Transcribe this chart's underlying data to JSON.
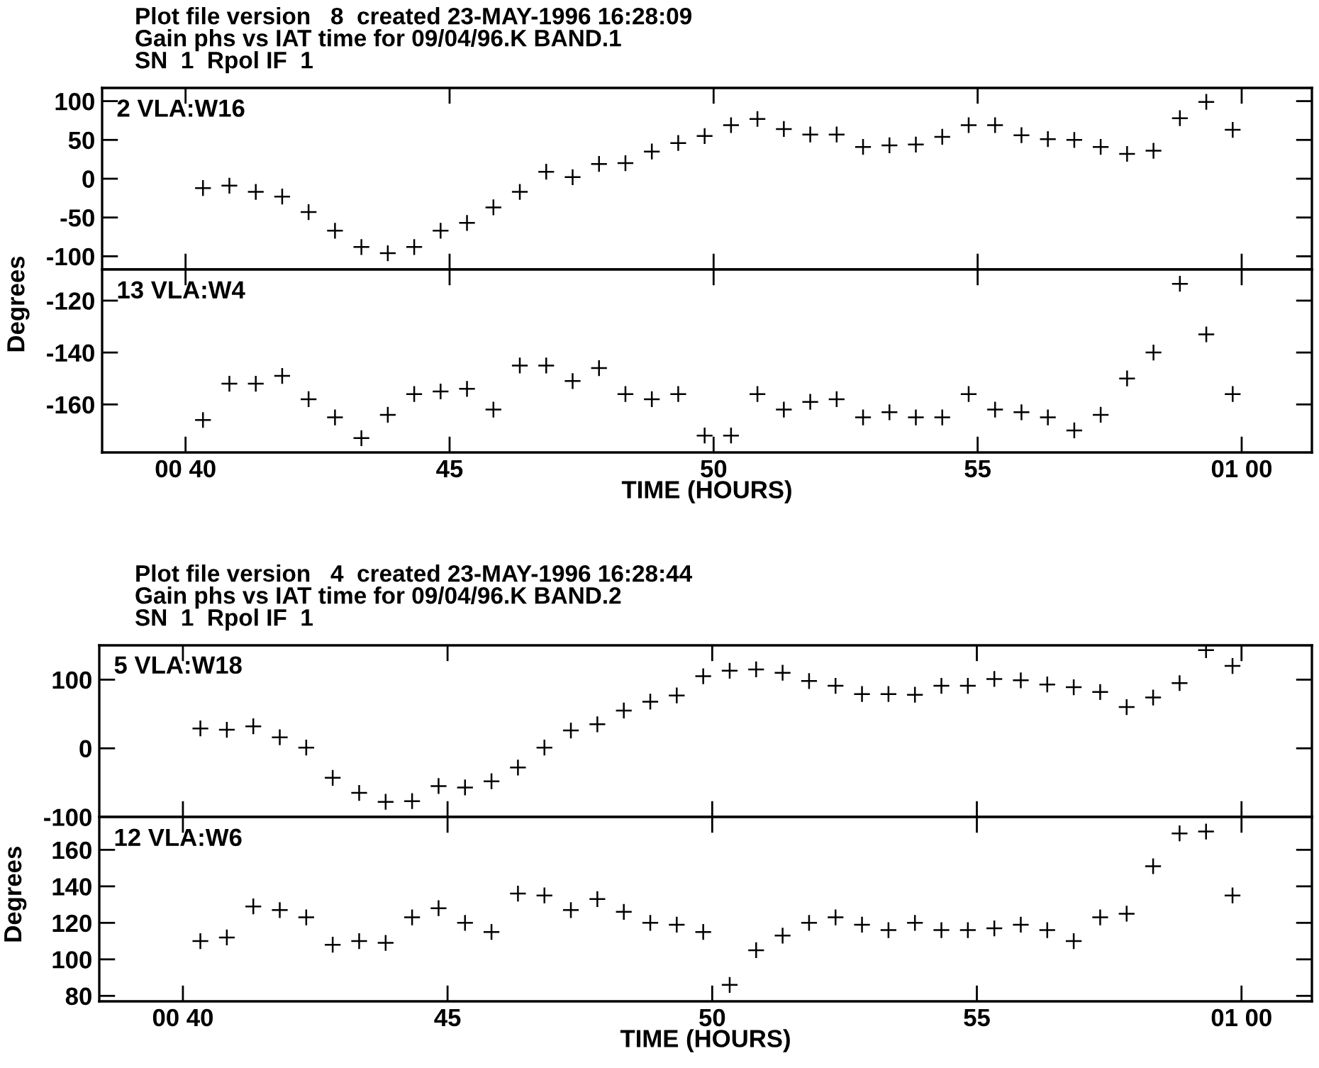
{
  "chart_data": [
    {
      "type": "scatter",
      "title": "Plot file version   8  created 23-MAY-1996 16:28:09",
      "subtitle": "Gain phs vs IAT time for 09/04/96.K BAND.1\nSN  1  Rpol IF  1",
      "annotations": [
        "2 VLA:W16"
      ],
      "marker": "cross",
      "tick_labels": "y",
      "x": [
        40.33,
        40.83,
        41.33,
        41.83,
        42.33,
        42.83,
        43.33,
        43.83,
        44.33,
        44.83,
        45.33,
        45.83,
        46.33,
        46.83,
        47.33,
        47.83,
        48.33,
        48.83,
        49.33,
        49.83,
        50.33,
        50.83,
        51.33,
        51.83,
        52.33,
        52.83,
        53.33,
        53.83,
        54.33,
        54.83,
        55.33,
        55.83,
        56.33,
        56.83,
        57.33,
        57.83,
        58.33,
        58.83,
        59.33,
        59.83
      ],
      "series": [
        {
          "color": "#000000",
          "values": [
            -12,
            -9,
            -17,
            -23,
            -43,
            -67,
            -88,
            -96,
            -88,
            -67,
            -57,
            -37,
            -17,
            9,
            2,
            19,
            20,
            35,
            46,
            55,
            69,
            77,
            64,
            57,
            57,
            41,
            43,
            44,
            54,
            69,
            69,
            56,
            51,
            50,
            41,
            32,
            36,
            78,
            99,
            63
          ]
        }
      ],
      "xlim": [
        38.42,
        61.33
      ],
      "xticks": [
        {
          "value": 40,
          "label": null
        },
        {
          "value": 45,
          "label": null
        },
        {
          "value": 50,
          "label": null
        },
        {
          "value": 55,
          "label": null
        },
        {
          "value": 60,
          "label": null
        }
      ],
      "ylim": [
        -117,
        117
      ],
      "yticks": [
        -100,
        -50,
        0,
        50,
        100
      ]
    },
    {
      "type": "scatter",
      "xlabel": "TIME (HOURS)",
      "ylabel": "Degrees",
      "annotations": [
        "13 VLA:W4"
      ],
      "marker": "cross",
      "x": [
        40.33,
        40.83,
        41.33,
        41.83,
        42.33,
        42.83,
        43.33,
        43.83,
        44.33,
        44.83,
        45.33,
        45.83,
        46.33,
        46.83,
        47.33,
        47.83,
        48.33,
        48.83,
        49.33,
        49.83,
        50.33,
        50.83,
        51.33,
        51.83,
        52.33,
        52.83,
        53.33,
        53.83,
        54.33,
        54.83,
        55.33,
        55.83,
        56.33,
        56.83,
        57.33,
        57.83,
        58.33,
        58.83,
        59.33,
        59.83
      ],
      "series": [
        {
          "color": "#000000",
          "values": [
            -166,
            -152,
            -152,
            -149,
            -158,
            -165,
            -173,
            -164,
            -156,
            -155,
            -154,
            -162,
            -145,
            -145,
            -151,
            -146,
            -156,
            -158,
            -156,
            -172,
            -172,
            -156,
            -162,
            -159,
            -158,
            -165,
            -163,
            -165,
            -165,
            -156,
            -162,
            -163,
            -165,
            -170,
            -164,
            -150,
            -140,
            -113.5,
            -133,
            -156
          ]
        }
      ],
      "xlim": [
        38.42,
        61.33
      ],
      "xticks": [
        {
          "value": 40,
          "label": "00 40"
        },
        45,
        50,
        55,
        {
          "value": 60,
          "label": "01 00"
        }
      ],
      "ylim": [
        -178.5,
        -108
      ],
      "yticks": [
        -160,
        -140,
        -120
      ]
    },
    {
      "type": "scatter",
      "title": "Plot file version   4  created 23-MAY-1996 16:28:44",
      "subtitle": "Gain phs vs IAT time for 09/04/96.K BAND.2\nSN  1  Rpol IF  1",
      "annotations": [
        "5 VLA:W18"
      ],
      "marker": "cross",
      "tick_labels": "y",
      "x": [
        40.33,
        40.83,
        41.33,
        41.83,
        42.33,
        42.83,
        43.33,
        43.83,
        44.33,
        44.83,
        45.33,
        45.83,
        46.33,
        46.83,
        47.33,
        47.83,
        48.33,
        48.83,
        49.33,
        49.83,
        50.33,
        50.83,
        51.33,
        51.83,
        52.33,
        52.83,
        53.33,
        53.83,
        54.33,
        54.83,
        55.33,
        55.83,
        56.33,
        56.83,
        57.33,
        57.83,
        58.33,
        58.83,
        59.33,
        59.83
      ],
      "series": [
        {
          "color": "#000000",
          "values": [
            29,
            27,
            32,
            16,
            1,
            -43,
            -65,
            -78,
            -77,
            -55,
            -57,
            -48,
            -28,
            1,
            26,
            35,
            55,
            68,
            77,
            105,
            113,
            115,
            110,
            98,
            91,
            79,
            79,
            78,
            91,
            91,
            101,
            99,
            93,
            89,
            82,
            60,
            74,
            95,
            143,
            120
          ]
        }
      ],
      "xlim": [
        38.42,
        61.33
      ],
      "xticks": [
        {
          "value": 40,
          "label": null
        },
        {
          "value": 45,
          "label": null
        },
        {
          "value": 50,
          "label": null
        },
        {
          "value": 55,
          "label": null
        },
        {
          "value": 60,
          "label": null
        }
      ],
      "ylim": [
        -100,
        150
      ],
      "yticks": [
        -100,
        0,
        100
      ]
    },
    {
      "type": "scatter",
      "xlabel": "TIME (HOURS)",
      "ylabel": "Degrees",
      "annotations": [
        "12 VLA:W6"
      ],
      "marker": "cross",
      "x": [
        40.33,
        40.83,
        41.33,
        41.83,
        42.33,
        42.83,
        43.33,
        43.83,
        44.33,
        44.83,
        45.33,
        45.83,
        46.33,
        46.83,
        47.33,
        47.83,
        48.33,
        48.83,
        49.33,
        49.83,
        50.33,
        50.83,
        51.33,
        51.83,
        52.33,
        52.83,
        53.33,
        53.83,
        54.33,
        54.83,
        55.33,
        55.83,
        56.33,
        56.83,
        57.33,
        57.83,
        58.33,
        58.83,
        59.33,
        59.83
      ],
      "series": [
        {
          "color": "#000000",
          "values": [
            110,
            112,
            129,
            127,
            123,
            108,
            110,
            109,
            123,
            128,
            120,
            115,
            136,
            135,
            127,
            133,
            126,
            120,
            119,
            115,
            86,
            105,
            113,
            120,
            123,
            119,
            116,
            120,
            116,
            116,
            117,
            119,
            116,
            110,
            123,
            125,
            151,
            169,
            170,
            135
          ]
        }
      ],
      "xlim": [
        38.42,
        61.33
      ],
      "xticks": [
        {
          "value": 40,
          "label": "00 40"
        },
        45,
        50,
        55,
        {
          "value": 60,
          "label": "01 00"
        }
      ],
      "ylim": [
        77,
        178
      ],
      "yticks": [
        80,
        100,
        120,
        140,
        160
      ]
    }
  ]
}
